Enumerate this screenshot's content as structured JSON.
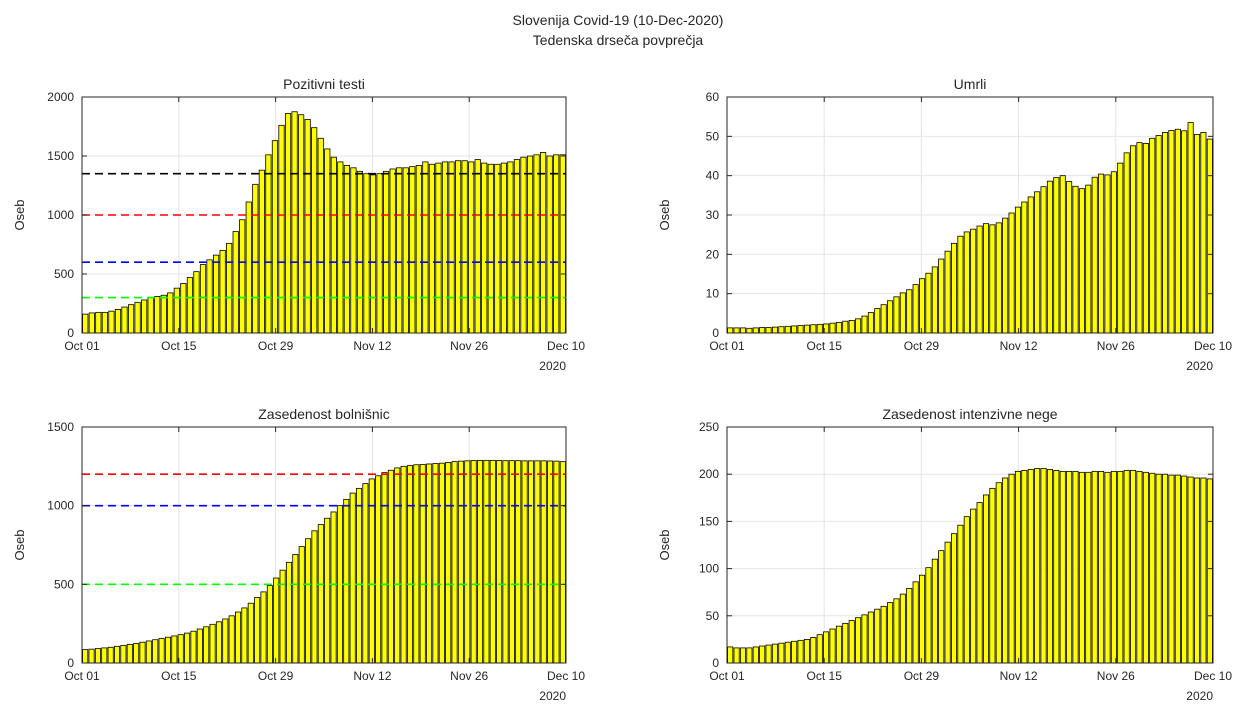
{
  "figure": {
    "title": "Slovenija Covid-19 (10-Dec-2020)",
    "subtitle": "Tedenska drseča povprečja",
    "bar_color": "#ffff00",
    "bar_edge_color": "#000000",
    "grid_color": "#e4e4e4"
  },
  "chart_data": [
    {
      "type": "bar",
      "title": "Pozitivni testi",
      "ylabel": "Oseb",
      "ylim": [
        0,
        2000
      ],
      "yticks": [
        0,
        500,
        1000,
        1500,
        2000
      ],
      "xticks": [
        "Oct 01",
        "Oct 15",
        "Oct 29",
        "Nov 12",
        "Nov 26",
        "Dec 10"
      ],
      "year_label": "2020",
      "start_date": "2020-10-01",
      "end_date": "2020-12-10",
      "grid": true,
      "thresholds": [
        {
          "value": 1350,
          "color": "#000000"
        },
        {
          "value": 1000,
          "color": "#ff0000"
        },
        {
          "value": 600,
          "color": "#0000ff"
        },
        {
          "value": 300,
          "color": "#00ff00"
        }
      ],
      "values": [
        160,
        170,
        175,
        175,
        185,
        200,
        220,
        240,
        260,
        280,
        300,
        310,
        320,
        340,
        380,
        420,
        470,
        520,
        580,
        620,
        660,
        700,
        760,
        860,
        960,
        1110,
        1260,
        1380,
        1510,
        1630,
        1760,
        1860,
        1875,
        1850,
        1810,
        1740,
        1650,
        1560,
        1490,
        1450,
        1420,
        1400,
        1370,
        1350,
        1340,
        1350,
        1370,
        1390,
        1400,
        1400,
        1410,
        1420,
        1450,
        1430,
        1440,
        1450,
        1450,
        1460,
        1460,
        1450,
        1470,
        1440,
        1430,
        1430,
        1440,
        1450,
        1470,
        1490,
        1500,
        1510,
        1530,
        1500,
        1510,
        1510
      ]
    },
    {
      "type": "bar",
      "title": "Umrli",
      "ylabel": "Oseb",
      "ylim": [
        0,
        60
      ],
      "yticks": [
        0,
        10,
        20,
        30,
        40,
        50,
        60
      ],
      "xticks": [
        "Oct 01",
        "Oct 15",
        "Oct 29",
        "Nov 12",
        "Nov 26",
        "Dec 10"
      ],
      "year_label": "2020",
      "start_date": "2020-10-01",
      "end_date": "2020-12-10",
      "grid": true,
      "thresholds": [],
      "values": [
        1.3,
        1.3,
        1.3,
        1.2,
        1.3,
        1.4,
        1.4,
        1.5,
        1.6,
        1.7,
        1.8,
        1.9,
        2.0,
        2.1,
        2.2,
        2.3,
        2.5,
        2.7,
        3.0,
        3.2,
        3.6,
        4.3,
        5.2,
        6.2,
        7.2,
        8.2,
        9.2,
        10.2,
        11.0,
        12.3,
        13.8,
        15.2,
        16.8,
        18.8,
        20.8,
        22.8,
        24.6,
        25.7,
        26.4,
        27.2,
        27.8,
        27.5,
        28.0,
        29.2,
        30.5,
        32.0,
        33.3,
        34.6,
        35.9,
        37.2,
        38.6,
        39.5,
        40.0,
        38.5,
        37.3,
        36.7,
        37.6,
        39.6,
        40.4,
        40.2,
        41.0,
        43.2,
        45.8,
        47.6,
        48.4,
        48.2,
        49.5,
        50.2,
        51.0,
        51.5,
        51.8,
        51.4,
        53.5,
        50.5,
        51.0,
        49.3
      ]
    },
    {
      "type": "bar",
      "title": "Zasedenost bolnišnic",
      "ylabel": "Oseb",
      "ylim": [
        0,
        1500
      ],
      "yticks": [
        0,
        500,
        1000,
        1500
      ],
      "xticks": [
        "Oct 01",
        "Oct 15",
        "Oct 29",
        "Nov 12",
        "Nov 26",
        "Dec 10"
      ],
      "year_label": "2020",
      "start_date": "2020-10-01",
      "end_date": "2020-12-10",
      "grid": true,
      "thresholds": [
        {
          "value": 1200,
          "color": "#ff0000"
        },
        {
          "value": 1000,
          "color": "#0000ff"
        },
        {
          "value": 500,
          "color": "#00ff00"
        }
      ],
      "values": [
        85,
        88,
        92,
        96,
        100,
        106,
        112,
        118,
        124,
        132,
        140,
        148,
        156,
        164,
        172,
        180,
        190,
        202,
        216,
        230,
        246,
        262,
        280,
        300,
        324,
        350,
        380,
        416,
        452,
        492,
        540,
        590,
        640,
        690,
        740,
        790,
        840,
        880,
        920,
        960,
        1000,
        1040,
        1080,
        1110,
        1140,
        1170,
        1190,
        1210,
        1225,
        1240,
        1250,
        1255,
        1260,
        1262,
        1265,
        1268,
        1270,
        1275,
        1280,
        1283,
        1285,
        1287,
        1288,
        1288,
        1288,
        1287,
        1286,
        1286,
        1286,
        1285,
        1285,
        1285,
        1285,
        1284,
        1283,
        1280
      ]
    },
    {
      "type": "bar",
      "title": "Zasedenost intenzivne nege",
      "ylabel": "Oseb",
      "ylim": [
        0,
        250
      ],
      "yticks": [
        0,
        50,
        100,
        150,
        200,
        250
      ],
      "xticks": [
        "Oct 01",
        "Oct 15",
        "Oct 29",
        "Nov 12",
        "Nov 26",
        "Dec 10"
      ],
      "year_label": "2020",
      "start_date": "2020-10-01",
      "end_date": "2020-12-10",
      "grid": true,
      "thresholds": [],
      "values": [
        17,
        16,
        16,
        16,
        17,
        18,
        19,
        20,
        21,
        22,
        23,
        24,
        25,
        27,
        30,
        33,
        36,
        39,
        42,
        45,
        48,
        51,
        54,
        57,
        60,
        64,
        68,
        73,
        79,
        86,
        93,
        101,
        110,
        119,
        128,
        137,
        146,
        155,
        163,
        170,
        178,
        185,
        191,
        196,
        200,
        203,
        204,
        205,
        206,
        206,
        205,
        204,
        203,
        203,
        203,
        202,
        202,
        203,
        203,
        202,
        203,
        203,
        204,
        204,
        203,
        202,
        201,
        200,
        200,
        199,
        199,
        198,
        197,
        196,
        196,
        195
      ]
    }
  ]
}
